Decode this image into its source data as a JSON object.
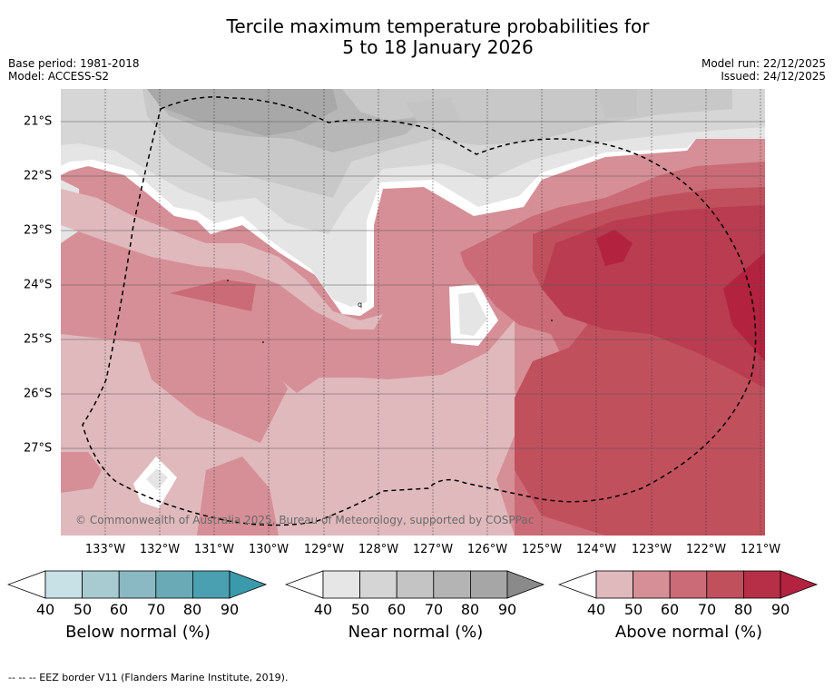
{
  "title": {
    "line1": "Tercile maximum temperature probabilities for",
    "line2": "5 to 18 January 2026"
  },
  "meta": {
    "base_period": "Base period: 1981-2018",
    "model": "Model: ACCESS-S2",
    "model_run": "Model run: 22/12/2025",
    "issued": "Issued: 24/12/2025"
  },
  "map": {
    "copyright": "© Commonwealth of Australia 2025, Bureau of Meteorology, supported by COSPPac",
    "longitude_labels": [
      "133°W",
      "132°W",
      "131°W",
      "130°W",
      "129°W",
      "128°W",
      "127°W",
      "126°W",
      "125°W",
      "124°W",
      "123°W",
      "122°W",
      "121°W"
    ],
    "latitude_labels": [
      "21°S",
      "22°S",
      "23°S",
      "24°S",
      "25°S",
      "26°S",
      "27°S"
    ]
  },
  "colorbars": [
    {
      "label": "Below normal (%)",
      "ticks": [
        "40",
        "50",
        "60",
        "70",
        "80",
        "90"
      ],
      "colors": [
        "#ffffff",
        "#c8e1e6",
        "#a7cbd1",
        "#8ab9c3",
        "#6aaab7",
        "#4aa0b0",
        "#3a9aac"
      ]
    },
    {
      "label": "Near normal (%)",
      "ticks": [
        "40",
        "50",
        "60",
        "70",
        "80",
        "90"
      ],
      "colors": [
        "#ffffff",
        "#e6e6e6",
        "#d5d5d5",
        "#c4c4c4",
        "#b4b4b4",
        "#a6a6a6",
        "#8a8a8a"
      ]
    },
    {
      "label": "Above normal (%)",
      "ticks": [
        "40",
        "50",
        "60",
        "70",
        "80",
        "90"
      ],
      "colors": [
        "#ffffff",
        "#e0b9bd",
        "#d68f97",
        "#cb6b77",
        "#c1505d",
        "#b72f46",
        "#b3223f"
      ]
    }
  ],
  "footer": "--  --  -- EEZ border V11 (Flanders Marine Institute, 2019)."
}
